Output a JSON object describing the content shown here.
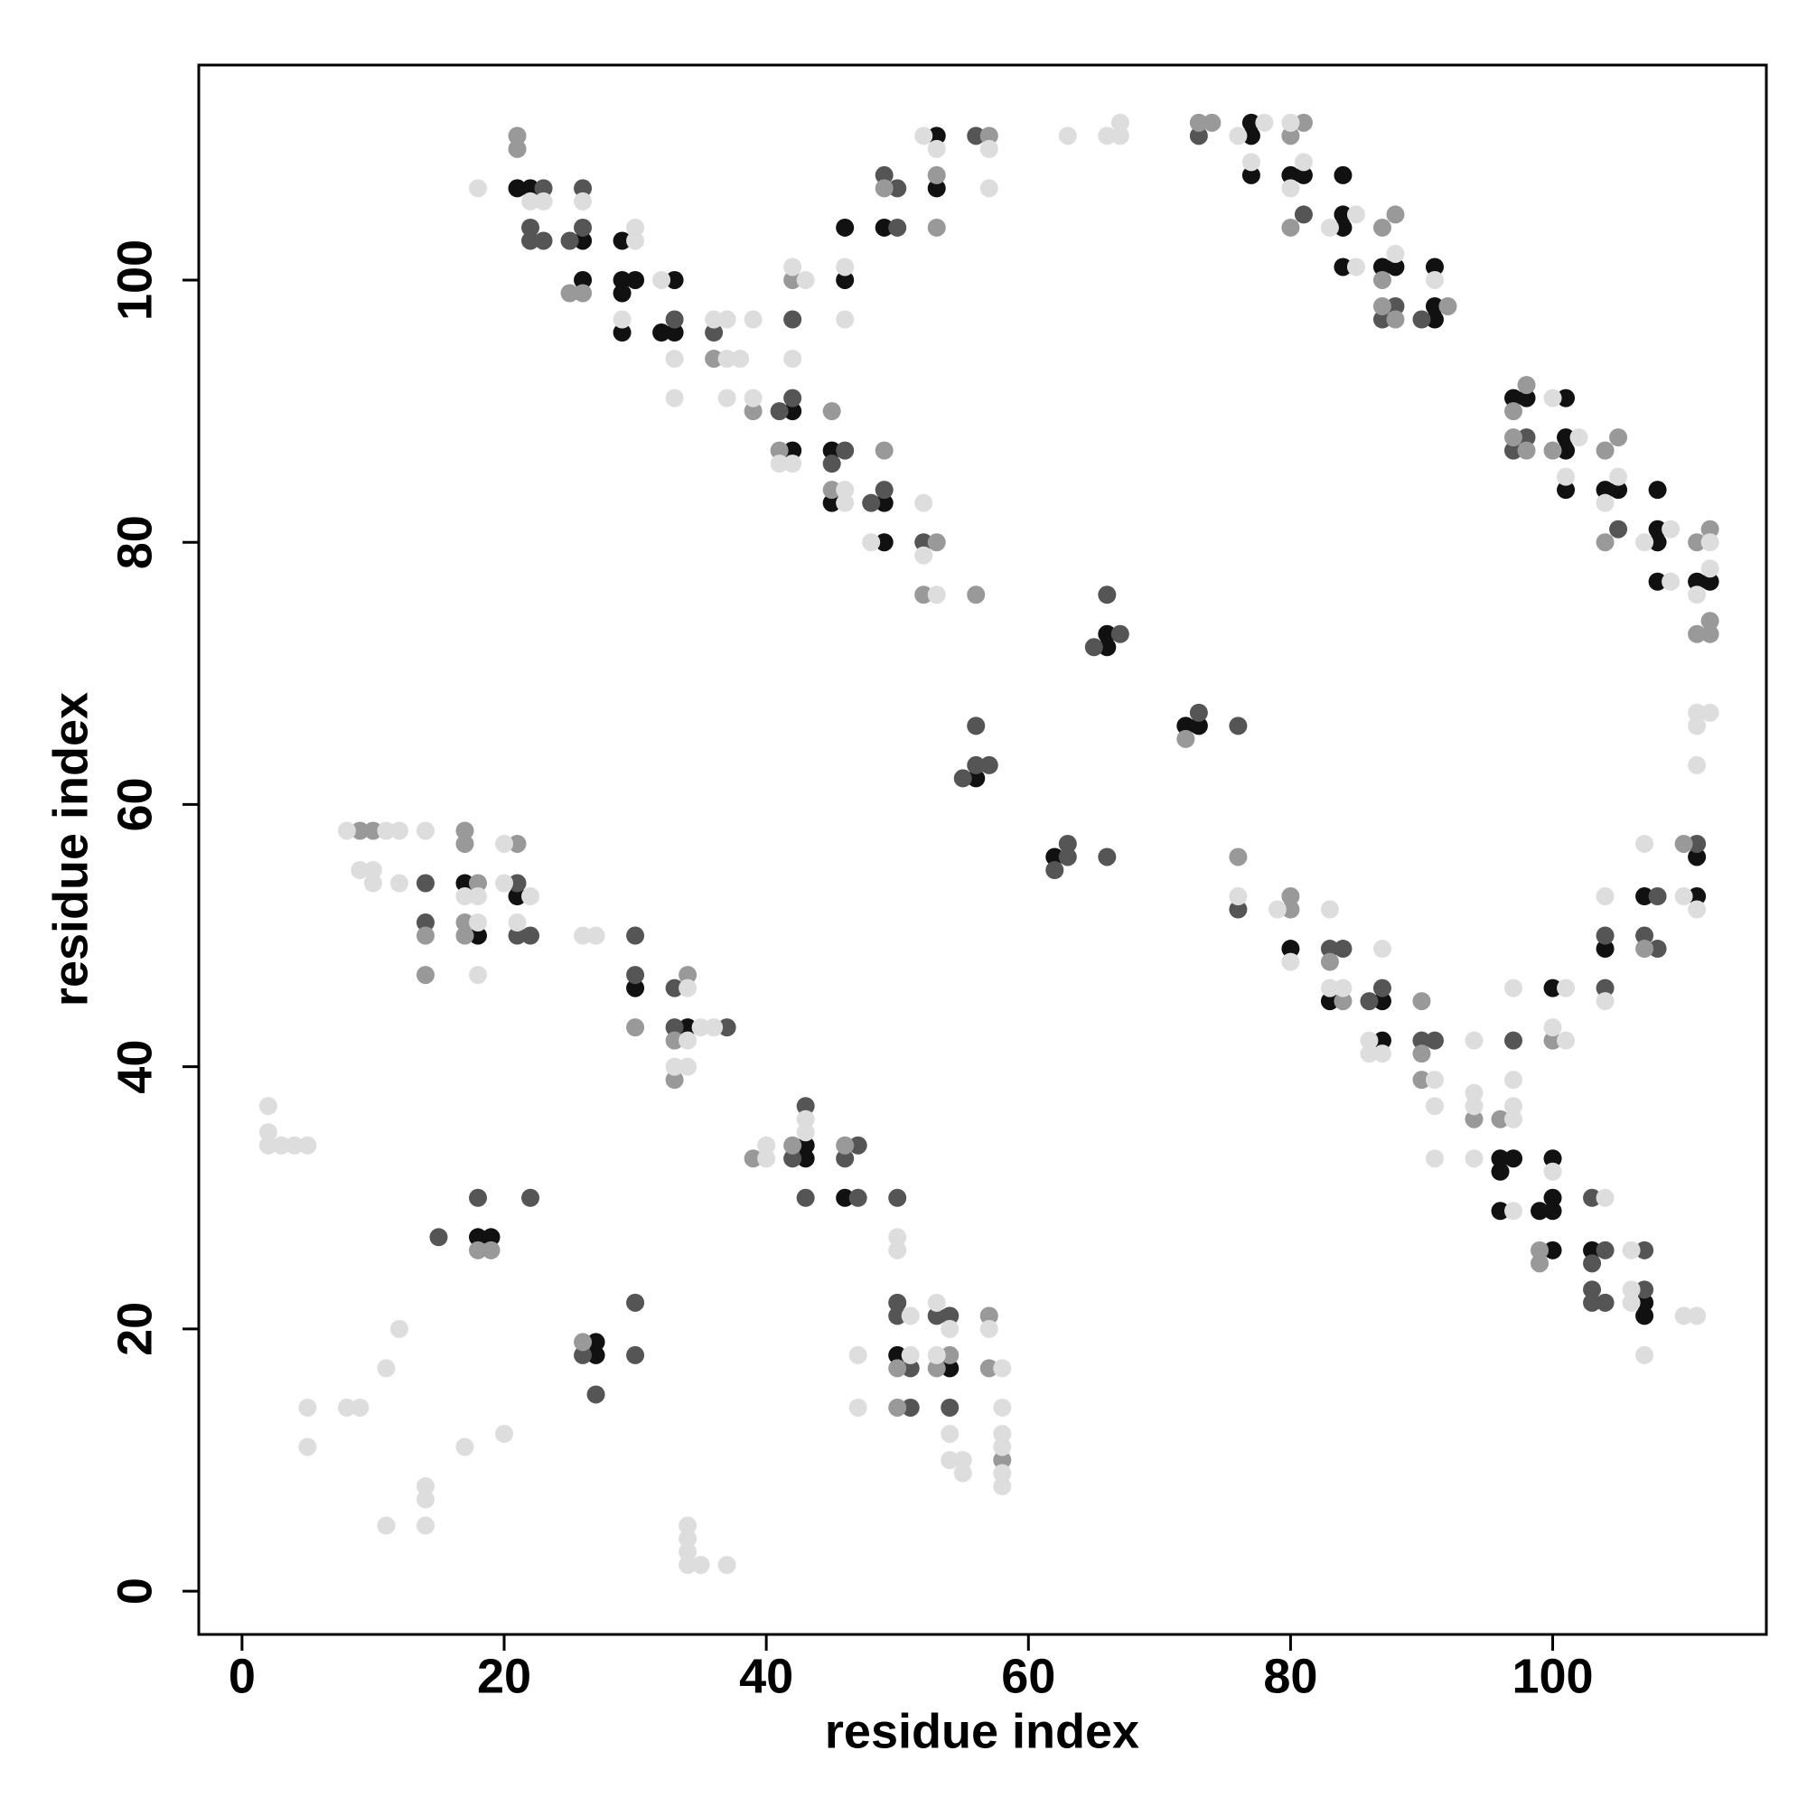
{
  "chart_data": {
    "type": "scatter",
    "xlabel": "residue index",
    "ylabel": "residue index",
    "xlim": [
      -3.3,
      116.3
    ],
    "ylim": [
      -3.3,
      116.4
    ],
    "xticks": [
      0,
      20,
      40,
      60,
      80,
      100
    ],
    "yticks": [
      0,
      20,
      40,
      60,
      80,
      100
    ],
    "series": [
      {
        "color": "#111111",
        "x": [
          21,
          22,
          26,
          26,
          29,
          29,
          30,
          29,
          29,
          33,
          32,
          33,
          42,
          42,
          45,
          45,
          46,
          46,
          49,
          49,
          49,
          53,
          53,
          77,
          77,
          77,
          80,
          81,
          84,
          84,
          84,
          84,
          87,
          88,
          91,
          91,
          91,
          97,
          98,
          101,
          101,
          101,
          101,
          104,
          105,
          108,
          108,
          108,
          108,
          111,
          112,
          66,
          66,
          56,
          72,
          73,
          62,
          80,
          83,
          87,
          87,
          96,
          97,
          96,
          96,
          99,
          100,
          100,
          100,
          100,
          100,
          104,
          107,
          111,
          111,
          103,
          107,
          107,
          17,
          18,
          21,
          30,
          34,
          43,
          43,
          46,
          18,
          19,
          27,
          27,
          50,
          54
        ],
        "values": [
          107,
          107,
          103,
          100,
          103,
          100,
          100,
          99,
          96,
          100,
          96,
          96,
          90,
          87,
          87,
          83,
          104,
          100,
          104,
          83,
          80,
          111,
          107,
          112,
          111,
          108,
          108,
          108,
          108,
          105,
          104,
          101,
          101,
          101,
          101,
          98,
          97,
          91,
          91,
          91,
          88,
          87,
          84,
          84,
          84,
          84,
          81,
          80,
          77,
          77,
          77,
          73,
          72,
          62,
          66,
          66,
          56,
          49,
          45,
          45,
          42,
          33,
          33,
          32,
          29,
          29,
          29,
          30,
          33,
          26,
          46,
          49,
          53,
          56,
          53,
          26,
          22,
          21,
          54,
          50,
          53,
          46,
          43,
          34,
          33,
          30,
          27,
          27,
          19,
          18,
          18,
          17
        ]
      },
      {
        "color": "#555555",
        "x": [
          23,
          26,
          22,
          22,
          23,
          25,
          26,
          33,
          36,
          41,
          42,
          42,
          46,
          45,
          49,
          50,
          50,
          48,
          49,
          52,
          56,
          73,
          81,
          88,
          87,
          90,
          98,
          97,
          105,
          66,
          65,
          67,
          56,
          55,
          56,
          57,
          73,
          76,
          63,
          63,
          62,
          66,
          76,
          83,
          84,
          87,
          86,
          90,
          91,
          97,
          104,
          104,
          108,
          107,
          108,
          111,
          103,
          104,
          103,
          103,
          103,
          104,
          107,
          107,
          14,
          14,
          21,
          21,
          22,
          30,
          30,
          33,
          33,
          37,
          43,
          42,
          47,
          46,
          43,
          47,
          50,
          15,
          18,
          22,
          26,
          27,
          30,
          30,
          50,
          50,
          51,
          51,
          53,
          54,
          54
        ],
        "values": [
          107,
          107,
          104,
          103,
          103,
          103,
          104,
          97,
          96,
          90,
          91,
          97,
          87,
          86,
          108,
          107,
          104,
          83,
          84,
          80,
          111,
          111,
          105,
          98,
          97,
          97,
          88,
          87,
          81,
          76,
          72,
          73,
          66,
          62,
          63,
          63,
          67,
          66,
          57,
          56,
          55,
          56,
          52,
          49,
          49,
          46,
          45,
          42,
          42,
          42,
          50,
          46,
          53,
          50,
          49,
          57,
          30,
          26,
          25,
          23,
          22,
          22,
          26,
          23,
          54,
          51,
          54,
          50,
          50,
          50,
          47,
          46,
          43,
          43,
          37,
          33,
          34,
          33,
          30,
          30,
          30,
          27,
          30,
          30,
          18,
          15,
          22,
          18,
          22,
          21,
          17,
          14,
          21,
          21,
          14
        ]
      },
      {
        "color": "#999999",
        "x": [
          21,
          21,
          25,
          26,
          36,
          39,
          42,
          41,
          45,
          45,
          49,
          49,
          53,
          53,
          57,
          53,
          52,
          56,
          73,
          74,
          81,
          80,
          80,
          87,
          88,
          87,
          87,
          88,
          92,
          98,
          97,
          97,
          98,
          100,
          104,
          105,
          104,
          111,
          112,
          112,
          111,
          112,
          72,
          76,
          80,
          80,
          83,
          84,
          90,
          90,
          90,
          94,
          96,
          99,
          99,
          100,
          107,
          110,
          9,
          10,
          17,
          17,
          18,
          17,
          17,
          14,
          14,
          21,
          30,
          34,
          33,
          33,
          42,
          39,
          46,
          18,
          19,
          26,
          50,
          50,
          54,
          53,
          57,
          57,
          58
        ],
        "values": [
          111,
          110,
          99,
          99,
          94,
          90,
          100,
          87,
          90,
          84,
          107,
          87,
          108,
          104,
          111,
          80,
          76,
          76,
          112,
          112,
          112,
          111,
          104,
          104,
          105,
          100,
          98,
          97,
          98,
          92,
          90,
          88,
          87,
          87,
          87,
          88,
          80,
          80,
          81,
          74,
          73,
          73,
          65,
          56,
          53,
          52,
          48,
          45,
          45,
          41,
          39,
          36,
          36,
          26,
          25,
          42,
          49,
          57,
          58,
          58,
          58,
          57,
          54,
          51,
          50,
          50,
          47,
          57,
          43,
          47,
          42,
          39,
          34,
          33,
          34,
          26,
          26,
          19,
          17,
          14,
          18,
          17,
          21,
          17,
          10
        ]
      },
      {
        "color": "#dddddd",
        "x": [
          18,
          22,
          23,
          26,
          30,
          30,
          29,
          32,
          33,
          33,
          36,
          37,
          37,
          38,
          39,
          37,
          39,
          42,
          43,
          42,
          41,
          42,
          46,
          46,
          46,
          46,
          48,
          52,
          53,
          57,
          57,
          52,
          52,
          53,
          63,
          66,
          67,
          67,
          76,
          78,
          77,
          80,
          80,
          81,
          85,
          83,
          85,
          88,
          91,
          100,
          102,
          101,
          105,
          104,
          109,
          107,
          109,
          112,
          112,
          111,
          111,
          112,
          111,
          111,
          76,
          79,
          80,
          83,
          83,
          84,
          87,
          86,
          86,
          87,
          91,
          91,
          91,
          94,
          94,
          94,
          94,
          97,
          97,
          97,
          97,
          97,
          100,
          101,
          100,
          101,
          104,
          104,
          107,
          110,
          111,
          104,
          106,
          106,
          106,
          107,
          110,
          111,
          8,
          11,
          12,
          14,
          9,
          10,
          10,
          12,
          17,
          18,
          18,
          18,
          20,
          20,
          22,
          21,
          26,
          27,
          34,
          34,
          35,
          36,
          33,
          34,
          2,
          2,
          2,
          3,
          4,
          5,
          43,
          43,
          40,
          40,
          50,
          50,
          51,
          51,
          47,
          47,
          53,
          54,
          53,
          57,
          58,
          58,
          54,
          54,
          55,
          55,
          58,
          58,
          58,
          58,
          12,
          11,
          5,
          8,
          9,
          5,
          17,
          20,
          14,
          14,
          11,
          14,
          34,
          34,
          34,
          34,
          35,
          37
        ],
        "values": [
          107,
          106,
          106,
          106,
          104,
          103,
          97,
          100,
          94,
          91,
          97,
          97,
          94,
          94,
          97,
          91,
          91,
          101,
          100,
          94,
          86,
          86,
          84,
          83,
          101,
          97,
          80,
          111,
          110,
          110,
          107,
          83,
          79,
          76,
          111,
          111,
          112,
          111,
          111,
          112,
          109,
          112,
          107,
          109,
          105,
          104,
          101,
          102,
          100,
          91,
          88,
          85,
          85,
          83,
          81,
          80,
          77,
          80,
          78,
          76,
          67,
          67,
          66,
          63,
          53,
          52,
          48,
          52,
          46,
          46,
          49,
          42,
          41,
          41,
          39,
          37,
          33,
          42,
          38,
          37,
          33,
          46,
          39,
          37,
          36,
          29,
          32,
          46,
          43,
          42,
          53,
          45,
          57,
          53,
          52,
          30,
          26,
          23,
          22,
          18,
          21,
          21,
          58,
          58,
          58,
          58,
          55,
          55,
          54,
          54,
          53,
          53,
          51,
          47,
          57,
          54,
          53,
          51,
          50,
          50,
          46,
          42,
          43,
          43,
          40,
          40,
          37,
          35,
          34,
          34,
          34,
          34,
          36,
          35,
          34,
          33,
          27,
          26,
          21,
          18,
          18,
          14,
          22,
          20,
          18,
          20,
          17,
          14,
          12,
          10,
          10,
          9,
          12,
          11,
          9,
          8,
          20,
          17,
          14,
          14,
          14,
          11,
          11,
          12,
          8,
          7,
          5,
          5,
          5,
          4,
          3,
          2,
          2,
          2
        ]
      }
    ]
  }
}
